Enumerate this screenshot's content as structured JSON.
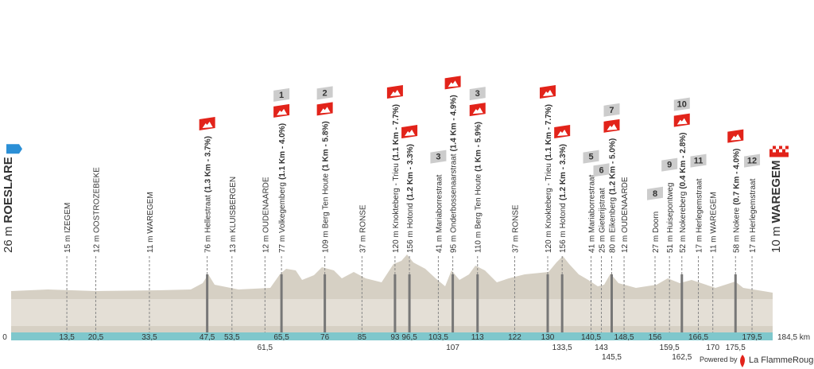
{
  "start": {
    "elevation": "26 m",
    "name": "ROESLARE"
  },
  "finish": {
    "elevation": "10 m",
    "name": "WAREGEM"
  },
  "waypoints": [
    {
      "label": "15 m IZEGEM"
    },
    {
      "label": "12 m OOSTROZEBEKE"
    },
    {
      "label": "11 m WAREGEM"
    },
    {
      "label": "76 m Hellestraat",
      "climb": "(1.3 Km - 3.7%)"
    },
    {
      "label": "13 m KLUISBERGEN"
    },
    {
      "label": "12 m OUDENAARDE"
    },
    {
      "label": "77 m Volkegemberg",
      "climb": "(1.1 Km - 4.0%)",
      "flag": "1"
    },
    {
      "label": "109 m Berg Ten Houte",
      "climb": "(1 Km - 5.8%)",
      "flag": "2"
    },
    {
      "label": "37 m RONSE"
    },
    {
      "label": "120 m Knokteberg - Trieu",
      "climb": "(1.1 Km - 7.7%)"
    },
    {
      "label": "156 m Hotond",
      "climb": "(1.2 Km - 3.3%)"
    },
    {
      "label": "41 m Mariaborrestraat",
      "flag": "3"
    },
    {
      "label": "95 m Onderbossenaarstraat",
      "climb": "(1.4 Km - 4.9%)"
    },
    {
      "label": "110 m Berg Ten Houte",
      "climb": "(1 Km - 5.9%)",
      "flag": "3"
    },
    {
      "label": "37 m RONSE"
    },
    {
      "label": "120 m Knokteberg - Trieu",
      "climb": "(1.1 Km - 7.7%)"
    },
    {
      "label": "156 m Hotond",
      "climb": "(1.2 Km - 3.3%)"
    },
    {
      "label": "41 m Mariaborrestraat",
      "flag": "5"
    },
    {
      "label": "25 m Gieterijstraat",
      "flag": "6"
    },
    {
      "label": "80 m Eikenberg",
      "climb": "(1.2 Km - 5.0%)",
      "flag": "7"
    },
    {
      "label": "12 m OUDENAARDE"
    },
    {
      "label": "27 m Doorn",
      "flag": "8"
    },
    {
      "label": "51 m Huisepontweg",
      "flag": "9"
    },
    {
      "label": "52 m Nokereberg",
      "climb": "(0.4 Km - 2.8%)",
      "flag": "10"
    },
    {
      "label": "17 m Herlegemstraat",
      "flag": "11"
    },
    {
      "label": "11 m WAREGEM"
    },
    {
      "label": "58 m Nokere",
      "climb": "(0.7 Km - 4.0%)"
    },
    {
      "label": "17 m Herlegemstraat",
      "flag": "12"
    }
  ],
  "km_marks": [
    {
      "value": 0,
      "label": "0"
    },
    {
      "value": 13.5,
      "label": "13,5"
    },
    {
      "value": 20.5,
      "label": "20,5"
    },
    {
      "value": 33.5,
      "label": "33,5"
    },
    {
      "value": 47.5,
      "label": "47,5"
    },
    {
      "value": 53.5,
      "label": "53,5"
    },
    {
      "value": 61.5,
      "label": "61,5"
    },
    {
      "value": 65.5,
      "label": "65,5"
    },
    {
      "value": 76,
      "label": "76"
    },
    {
      "value": 85,
      "label": "85"
    },
    {
      "value": 93,
      "label": "93"
    },
    {
      "value": 96.5,
      "label": "96,5"
    },
    {
      "value": 103.5,
      "label": "103,5"
    },
    {
      "value": 107,
      "label": "107"
    },
    {
      "value": 113,
      "label": "113"
    },
    {
      "value": 122,
      "label": "122"
    },
    {
      "value": 130,
      "label": "130"
    },
    {
      "value": 133.5,
      "label": "133,5"
    },
    {
      "value": 140.5,
      "label": "140,5"
    },
    {
      "value": 143,
      "label": "143"
    },
    {
      "value": 145.5,
      "label": "145,5"
    },
    {
      "value": 148.5,
      "label": "148,5"
    },
    {
      "value": 156,
      "label": "156"
    },
    {
      "value": 159.5,
      "label": "159,5"
    },
    {
      "value": 162.5,
      "label": "162,5"
    },
    {
      "value": 166.5,
      "label": "166,5"
    },
    {
      "value": 170,
      "label": "170"
    },
    {
      "value": 175.5,
      "label": "175,5"
    },
    {
      "value": 179.5,
      "label": "179,5"
    },
    {
      "value": 184.5,
      "label": "184,5 km"
    }
  ],
  "footer": {
    "powered_by": "Powered by",
    "brand": "La FlammeRouge"
  }
}
